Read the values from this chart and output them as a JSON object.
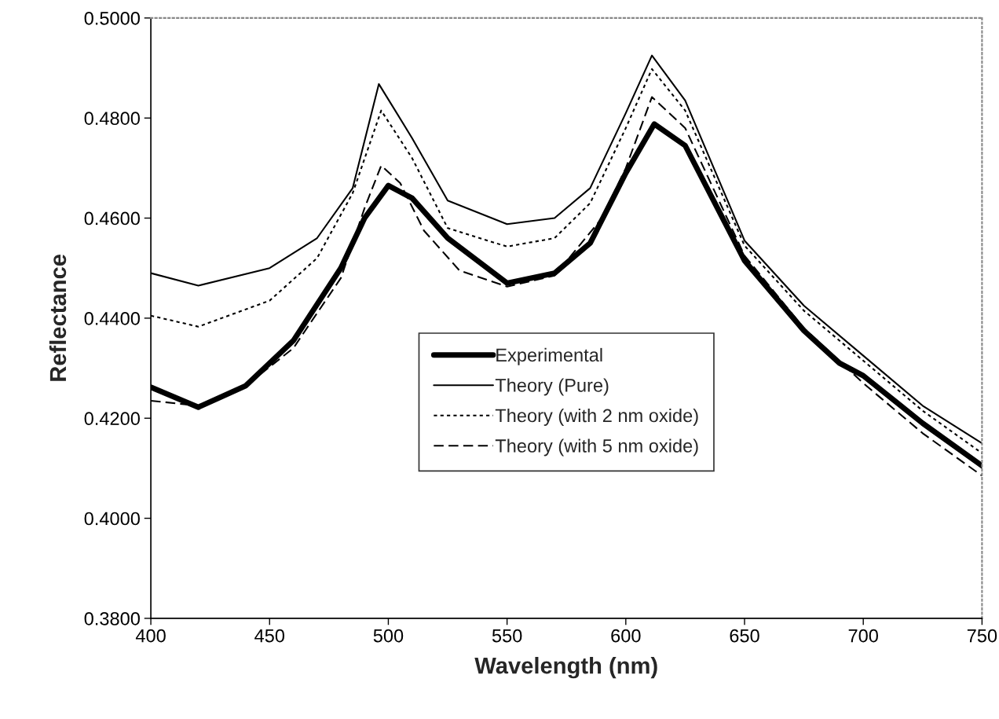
{
  "chart_data": {
    "type": "line",
    "xlabel": "Wavelength (nm)",
    "ylabel": "Reflectance",
    "xlim": [
      400,
      750
    ],
    "xticks": [
      400,
      450,
      500,
      550,
      600,
      650,
      700,
      750
    ],
    "ylim": [
      0.38,
      0.5
    ],
    "yticks": [
      {
        "value": 0.38,
        "label": "0.3800"
      },
      {
        "value": 0.4,
        "label": "0.4000"
      },
      {
        "value": 0.42,
        "label": "0.4200"
      },
      {
        "value": 0.44,
        "label": "0.4400"
      },
      {
        "value": 0.46,
        "label": "0.4600"
      },
      {
        "value": 0.48,
        "label": "0.4800"
      },
      {
        "value": 0.5,
        "label": "0.5000"
      }
    ],
    "grid": false,
    "legend": "bottom",
    "marker": "none",
    "series": [
      {
        "name": "Experimental",
        "color": "#000000",
        "line_style": "solid",
        "x": [
          400,
          420,
          440,
          460,
          480,
          490,
          500,
          510,
          525,
          550,
          570,
          585,
          600,
          612,
          625,
          650,
          675,
          690,
          700,
          725,
          750
        ],
        "values": [
          0.4262,
          0.4222,
          0.4265,
          0.4355,
          0.45,
          0.46,
          0.4665,
          0.464,
          0.456,
          0.447,
          0.449,
          0.455,
          0.469,
          0.4788,
          0.4745,
          0.4515,
          0.4375,
          0.431,
          0.4285,
          0.419,
          0.4105
        ]
      },
      {
        "name": "Theory (Pure)",
        "color": "#000000",
        "line_style": "solid",
        "x": [
          400,
          420,
          450,
          470,
          485,
          496,
          510,
          525,
          550,
          570,
          585,
          600,
          611,
          625,
          650,
          675,
          700,
          725,
          750
        ],
        "values": [
          0.449,
          0.4465,
          0.45,
          0.456,
          0.466,
          0.4868,
          0.476,
          0.4635,
          0.4588,
          0.46,
          0.466,
          0.481,
          0.4925,
          0.4835,
          0.4555,
          0.4425,
          0.4325,
          0.4225,
          0.415
        ]
      },
      {
        "name": "Theory (with 2 nm oxide)",
        "color": "#000000",
        "line_style": "dotted",
        "x": [
          400,
          420,
          450,
          470,
          485,
          497,
          510,
          525,
          550,
          570,
          585,
          600,
          611,
          625,
          650,
          675,
          700,
          725,
          750
        ],
        "values": [
          0.4405,
          0.4383,
          0.4435,
          0.452,
          0.465,
          0.4815,
          0.472,
          0.458,
          0.4543,
          0.456,
          0.463,
          0.478,
          0.4898,
          0.4815,
          0.4545,
          0.4415,
          0.4315,
          0.4215,
          0.413
        ]
      },
      {
        "name": "Theory (with 5 nm oxide)",
        "color": "#000000",
        "line_style": "dashed",
        "x": [
          400,
          420,
          440,
          460,
          480,
          490,
          497,
          505,
          515,
          530,
          550,
          570,
          590,
          600,
          611,
          625,
          650,
          675,
          700,
          725,
          750
        ],
        "values": [
          0.4235,
          0.4225,
          0.4265,
          0.434,
          0.448,
          0.462,
          0.4705,
          0.467,
          0.4575,
          0.4495,
          0.4463,
          0.4485,
          0.46,
          0.47,
          0.4842,
          0.478,
          0.4525,
          0.438,
          0.427,
          0.417,
          0.4085
        ]
      }
    ]
  }
}
